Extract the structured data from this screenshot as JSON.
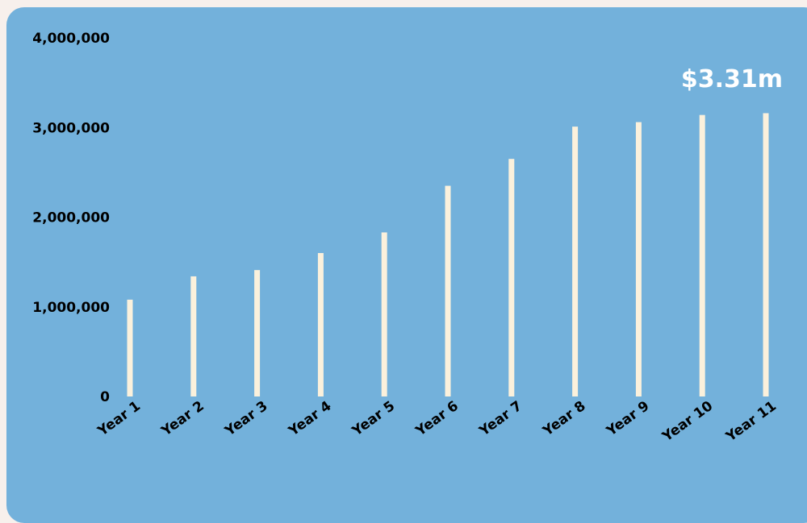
{
  "chart_data": {
    "type": "bar",
    "title": "",
    "xlabel": "",
    "ylabel": "",
    "categories": [
      "Year 1",
      "Year 2",
      "Year 3",
      "Year 4",
      "Year 5",
      "Year 6",
      "Year 7",
      "Year 8",
      "Year 9",
      "Year 10",
      "Year 11"
    ],
    "values": [
      1080000,
      1340000,
      1410000,
      1600000,
      1830000,
      2350000,
      2650000,
      3010000,
      3060000,
      3140000,
      3160000
    ],
    "ylim": [
      0,
      4000000
    ],
    "yticks": [
      0,
      1000000,
      2000000,
      3000000,
      4000000
    ],
    "ytick_labels": [
      "0",
      "1,000,000",
      "2,000,000",
      "3,000,000",
      "4,000,000"
    ],
    "grid": false,
    "annotation": "$3.31m"
  },
  "colors": {
    "page_background": "#f7f0ec",
    "card_background": "#73b1db",
    "bar": "#fbf1dc",
    "axis_text": "#000000",
    "annotation_text": "#ffffff"
  }
}
